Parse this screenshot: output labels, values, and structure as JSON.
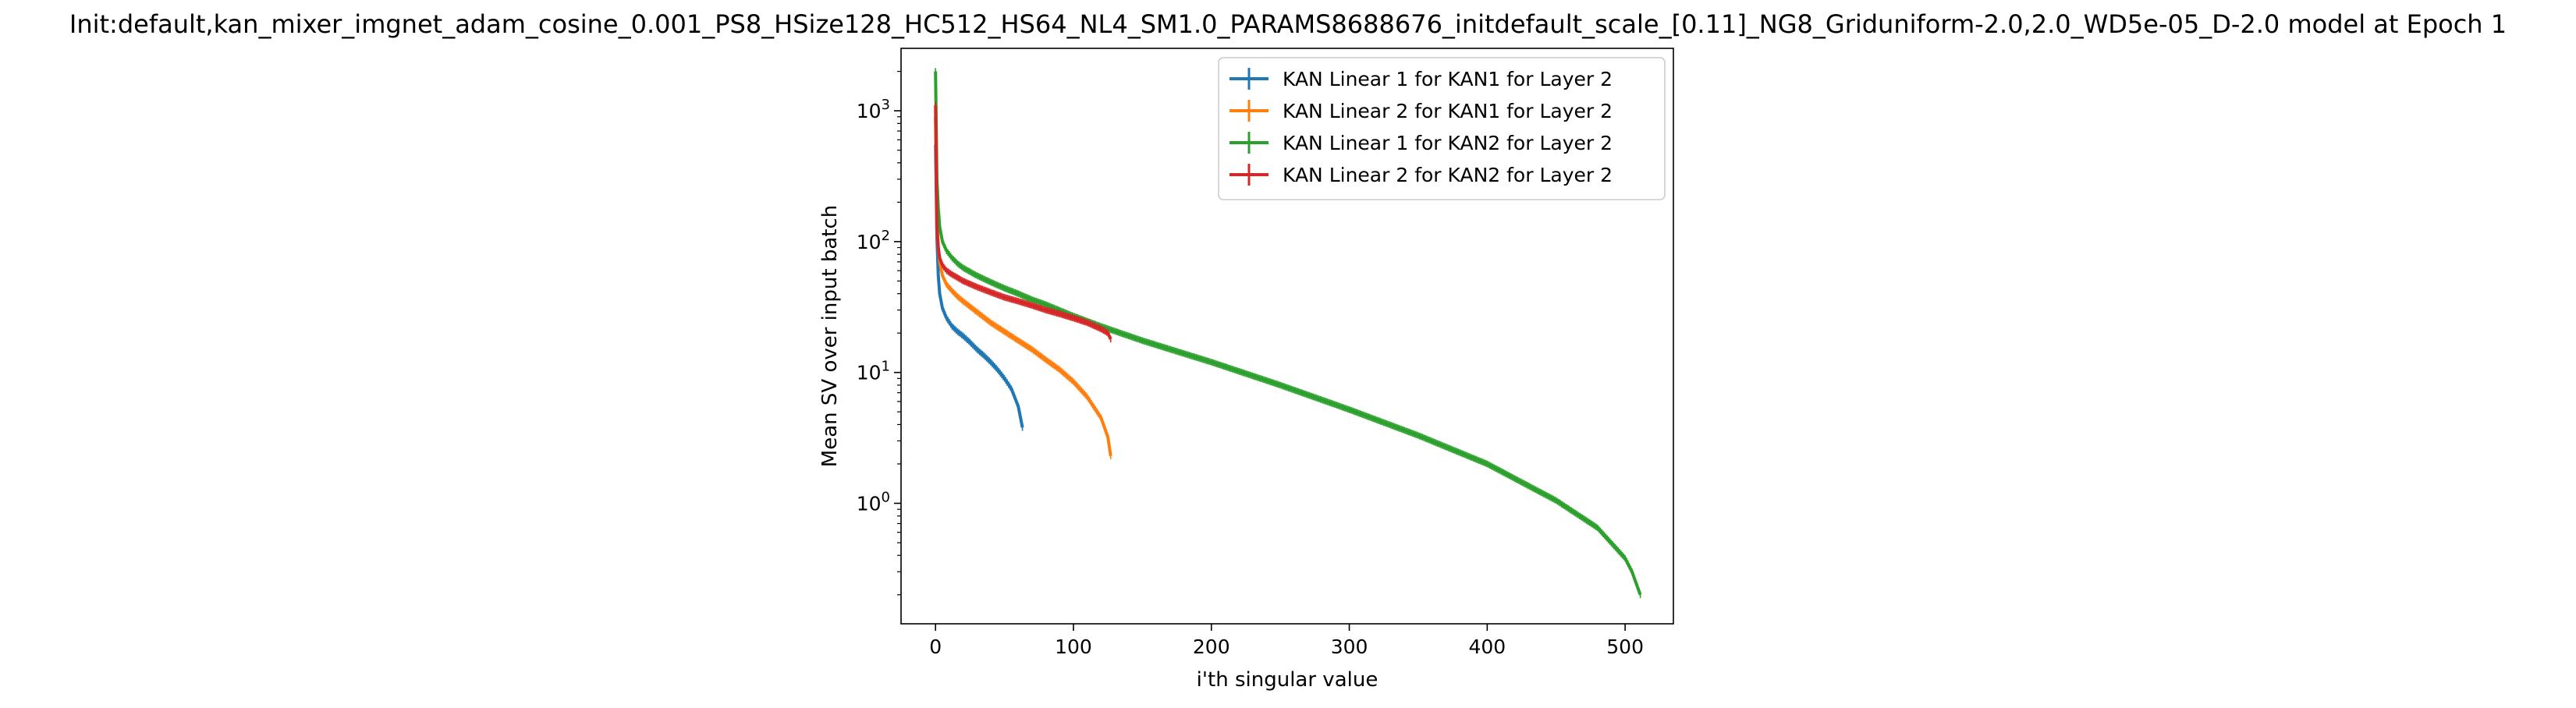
{
  "chart_data": {
    "type": "line",
    "title": "Init:default,kan_mixer_imgnet_adam_cosine_0.001_PS8_HSize128_HC512_HS64_NL4_SM1.0_PARAMS8688676_initdefault_scale_[0.11]_NG8_Griduniform-2.0,2.0_WD5e-05_D-2.0 model at Epoch 1",
    "xlabel": "i'th singular value",
    "ylabel": "Mean SV over input batch",
    "xlim": [
      -25,
      535
    ],
    "ylim": [
      0.12,
      3000
    ],
    "yscale": "log",
    "legend_position": "top-right",
    "grid": false,
    "x_ticks": [
      {
        "value": 0,
        "label": "0"
      },
      {
        "value": 100,
        "label": "100"
      },
      {
        "value": 200,
        "label": "200"
      },
      {
        "value": 300,
        "label": "300"
      },
      {
        "value": 400,
        "label": "400"
      },
      {
        "value": 500,
        "label": "500"
      }
    ],
    "y_ticks": [
      {
        "value": 1,
        "base": "10",
        "exp": "0"
      },
      {
        "value": 10,
        "base": "10",
        "exp": "1"
      },
      {
        "value": 100,
        "base": "10",
        "exp": "2"
      },
      {
        "value": 1000,
        "base": "10",
        "exp": "3"
      }
    ],
    "series": [
      {
        "name": "KAN Linear 1 for KAN1 for Layer 2",
        "color": "#1f77b4",
        "x": [
          0,
          1,
          2,
          3,
          5,
          8,
          12,
          16,
          20,
          25,
          30,
          35,
          40,
          45,
          50,
          55,
          60,
          63
        ],
        "y": [
          550,
          110,
          55,
          40,
          31,
          26,
          22.5,
          20.5,
          19,
          17,
          15,
          13.5,
          12,
          10.5,
          9,
          7.5,
          5.5,
          3.8
        ]
      },
      {
        "name": "KAN Linear 2 for KAN1 for Layer 2",
        "color": "#ff7f0e",
        "x": [
          0,
          1,
          2,
          3,
          5,
          8,
          12,
          16,
          20,
          30,
          40,
          50,
          60,
          70,
          80,
          90,
          100,
          110,
          120,
          125,
          127
        ],
        "y": [
          900,
          160,
          90,
          70,
          55,
          47,
          42,
          38,
          35,
          29,
          24,
          20.5,
          17.5,
          15,
          12.5,
          10.5,
          8.5,
          6.5,
          4.5,
          3.2,
          2.3
        ]
      },
      {
        "name": "KAN Linear 1 for KAN2 for Layer 2",
        "color": "#2ca02c",
        "x": [
          0,
          1,
          2,
          3,
          5,
          8,
          12,
          16,
          20,
          30,
          40,
          50,
          60,
          70,
          80,
          100,
          120,
          150,
          200,
          250,
          300,
          350,
          400,
          450,
          480,
          500,
          505,
          511
        ],
        "y": [
          2000,
          300,
          180,
          130,
          100,
          85,
          75,
          68,
          63,
          55,
          49,
          44,
          40,
          36,
          33,
          27,
          22.5,
          17.5,
          12,
          8,
          5.2,
          3.3,
          2.0,
          1.05,
          0.65,
          0.38,
          0.3,
          0.2
        ]
      },
      {
        "name": "KAN Linear 2 for KAN2 for Layer 2",
        "color": "#d62728",
        "x": [
          0,
          1,
          2,
          3,
          5,
          8,
          12,
          16,
          20,
          30,
          40,
          50,
          60,
          70,
          80,
          90,
          100,
          110,
          120,
          125,
          127
        ],
        "y": [
          1100,
          130,
          90,
          75,
          66,
          60,
          56,
          53,
          50,
          45,
          41,
          37.5,
          35,
          32.5,
          30,
          28,
          26,
          24,
          21.5,
          20,
          18
        ]
      }
    ]
  }
}
